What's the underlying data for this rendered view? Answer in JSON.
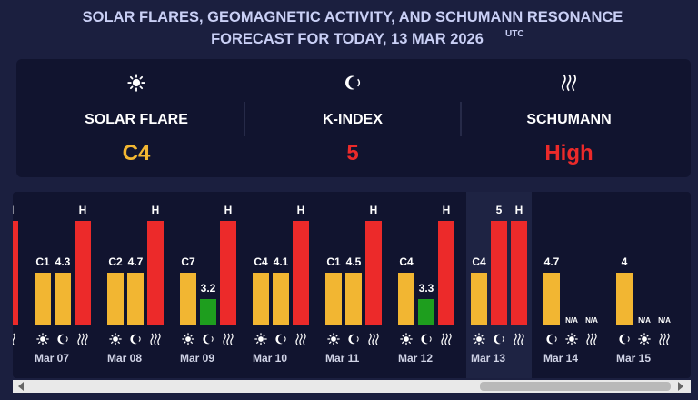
{
  "header": {
    "title_line1": "SOLAR FLARES, GEOMAGNETIC ACTIVITY, AND SCHUMANN RESONANCE",
    "title_line2": "FORECAST FOR TODAY, 13 MAR 2026",
    "utc": "UTC"
  },
  "summary": [
    {
      "label": "SOLAR FLARE",
      "value": "C4",
      "color": "#f2b632"
    },
    {
      "label": "K-INDEX",
      "value": "5",
      "color": "#ec2a2a"
    },
    {
      "label": "SCHUMANN",
      "value": "High",
      "color": "#ec2a2a"
    }
  ],
  "colors": {
    "flare": "#f2b632",
    "schumann": "#ec2a2a"
  },
  "days": [
    {
      "schumann": "H"
    },
    {
      "date": "Mar 07",
      "flare": "C1",
      "kindex": 4.3,
      "kcolor": "#f2b632",
      "schumann": "H"
    },
    {
      "date": "Mar 08",
      "flare": "C2",
      "kindex": 4.7,
      "kcolor": "#f2b632",
      "schumann": "H"
    },
    {
      "date": "Mar 09",
      "flare": "C7",
      "kindex": 3.2,
      "kcolor": "#1e9e1e",
      "schumann": "H"
    },
    {
      "date": "Mar 10",
      "flare": "C4",
      "kindex": 4.1,
      "kcolor": "#f2b632",
      "schumann": "H"
    },
    {
      "date": "Mar 11",
      "flare": "C1",
      "kindex": 4.5,
      "kcolor": "#f2b632",
      "schumann": "H"
    },
    {
      "date": "Mar 12",
      "flare": "C4",
      "kindex": 3.3,
      "kcolor": "#1e9e1e",
      "schumann": "H"
    },
    {
      "date": "Mar 13",
      "flare": "C4",
      "kindex": 5,
      "kcolor": "#ec2a2a",
      "schumann": "H"
    },
    {
      "date": "Mar 14",
      "flare": "N/A",
      "kindex": 4.7,
      "kcolor": "#f2b632",
      "schumann": "N/A"
    },
    {
      "date": "Mar 15",
      "flare": "N/A",
      "kindex": 4,
      "kcolor": "#f2b632",
      "schumann": "N/A"
    }
  ]
}
